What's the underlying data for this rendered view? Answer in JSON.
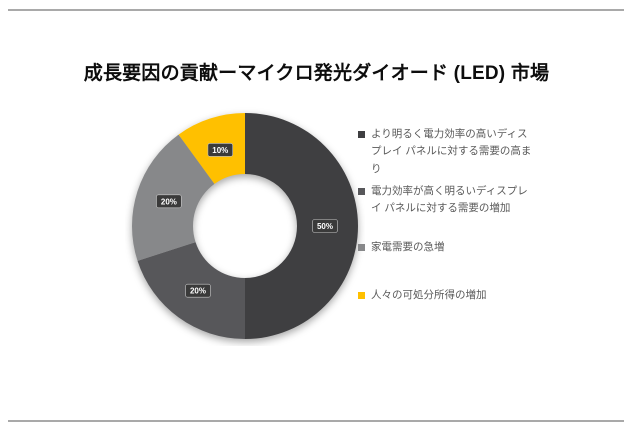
{
  "page": {
    "background": "#ffffff",
    "rule_color": "#a9a9a9"
  },
  "chart_data": {
    "type": "pie",
    "subtype": "donut",
    "title": "成長要因の貢献ーマイクロ発光ダイオード (LED) 市場",
    "unit": "%",
    "labels": [
      "より明るく電力効率の高いディスプレイ パネルに対する需要の高まり",
      "電力効率が高く明るいディスプレイ パネルに対する需要の増加",
      "家電需要の急増",
      "人々の可処分所得の増加"
    ],
    "values": [
      50,
      20,
      20,
      10
    ],
    "data_labels": [
      "50%",
      "20%",
      "20%",
      "10%"
    ],
    "colors": [
      "#3f3f41",
      "#57575a",
      "#87888a",
      "#ffc000"
    ],
    "data_label_bg": "#3a3a3a",
    "data_label_color": "#ffffff",
    "legend_text_color": "#595959",
    "legend_position": "right",
    "donut_hole_ratio": 0.46,
    "start_angle_deg": 0,
    "direction": "clockwise"
  }
}
